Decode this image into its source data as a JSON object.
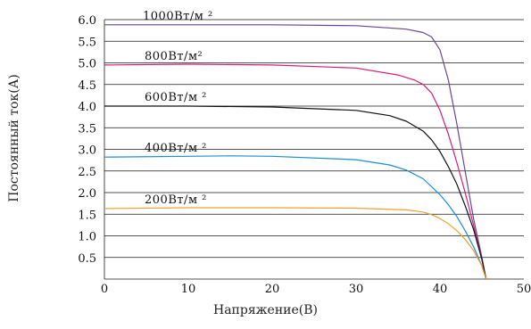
{
  "chart_data": {
    "type": "line",
    "xlabel": "Напряжение(В)",
    "ylabel": "Постоянный ток(А)",
    "xlim": [
      0,
      50
    ],
    "ylim": [
      0,
      6.0
    ],
    "x_ticks": [
      0,
      10,
      20,
      30,
      40,
      50
    ],
    "x_tick_labels": [
      "0",
      "10",
      "20",
      "30",
      "40",
      "50"
    ],
    "y_ticks": [
      0.5,
      1.0,
      1.5,
      2.0,
      2.5,
      3.0,
      3.5,
      4.0,
      4.5,
      5.0,
      5.5,
      6.0
    ],
    "y_tick_labels": [
      "0.5",
      "1.0",
      "1.5",
      "2.0",
      "2.5",
      "3.0",
      "3.5",
      "4.0",
      "4.5",
      "5.0",
      "5.5",
      "6.0"
    ],
    "grid": "horizontal",
    "series": [
      {
        "name": "1000Вт/м ²",
        "color": "#6a4596",
        "x": [
          0,
          10,
          20,
          30,
          36,
          38,
          39,
          40,
          41,
          42,
          43,
          44,
          45,
          45.5
        ],
        "y": [
          5.88,
          5.88,
          5.88,
          5.86,
          5.78,
          5.7,
          5.6,
          5.3,
          4.6,
          3.6,
          2.5,
          1.4,
          0.5,
          0
        ]
      },
      {
        "name": "800Вт/м²",
        "color": "#d81b7a",
        "x": [
          0,
          10,
          20,
          30,
          35,
          37,
          38,
          39,
          40,
          41,
          42,
          43,
          44,
          45,
          45.5
        ],
        "y": [
          4.95,
          4.97,
          4.95,
          4.88,
          4.72,
          4.6,
          4.5,
          4.3,
          3.9,
          3.35,
          2.7,
          2.0,
          1.25,
          0.45,
          0
        ]
      },
      {
        "name": "600Вт/м ²",
        "color": "#111111",
        "x": [
          0,
          10,
          20,
          30,
          34,
          36,
          38,
          39,
          40,
          41,
          42,
          43,
          44,
          45,
          45.5
        ],
        "y": [
          4.0,
          4.0,
          3.98,
          3.9,
          3.78,
          3.65,
          3.42,
          3.22,
          2.95,
          2.6,
          2.2,
          1.7,
          1.15,
          0.45,
          0
        ]
      },
      {
        "name": "400Вт/м ²",
        "color": "#1a8fd1",
        "x": [
          0,
          10,
          15,
          20,
          30,
          34,
          36,
          38,
          40,
          41,
          42,
          43,
          44,
          45,
          45.5
        ],
        "y": [
          2.82,
          2.84,
          2.85,
          2.84,
          2.76,
          2.64,
          2.52,
          2.32,
          1.95,
          1.72,
          1.45,
          1.12,
          0.75,
          0.3,
          0
        ]
      },
      {
        "name": "200Вт/м ²",
        "color": "#f0a030",
        "x": [
          0,
          10,
          20,
          30,
          36,
          38,
          39,
          40,
          41,
          42,
          43,
          44,
          45,
          45.5
        ],
        "y": [
          1.63,
          1.65,
          1.65,
          1.64,
          1.6,
          1.55,
          1.49,
          1.4,
          1.28,
          1.12,
          0.92,
          0.66,
          0.3,
          0
        ]
      }
    ]
  }
}
